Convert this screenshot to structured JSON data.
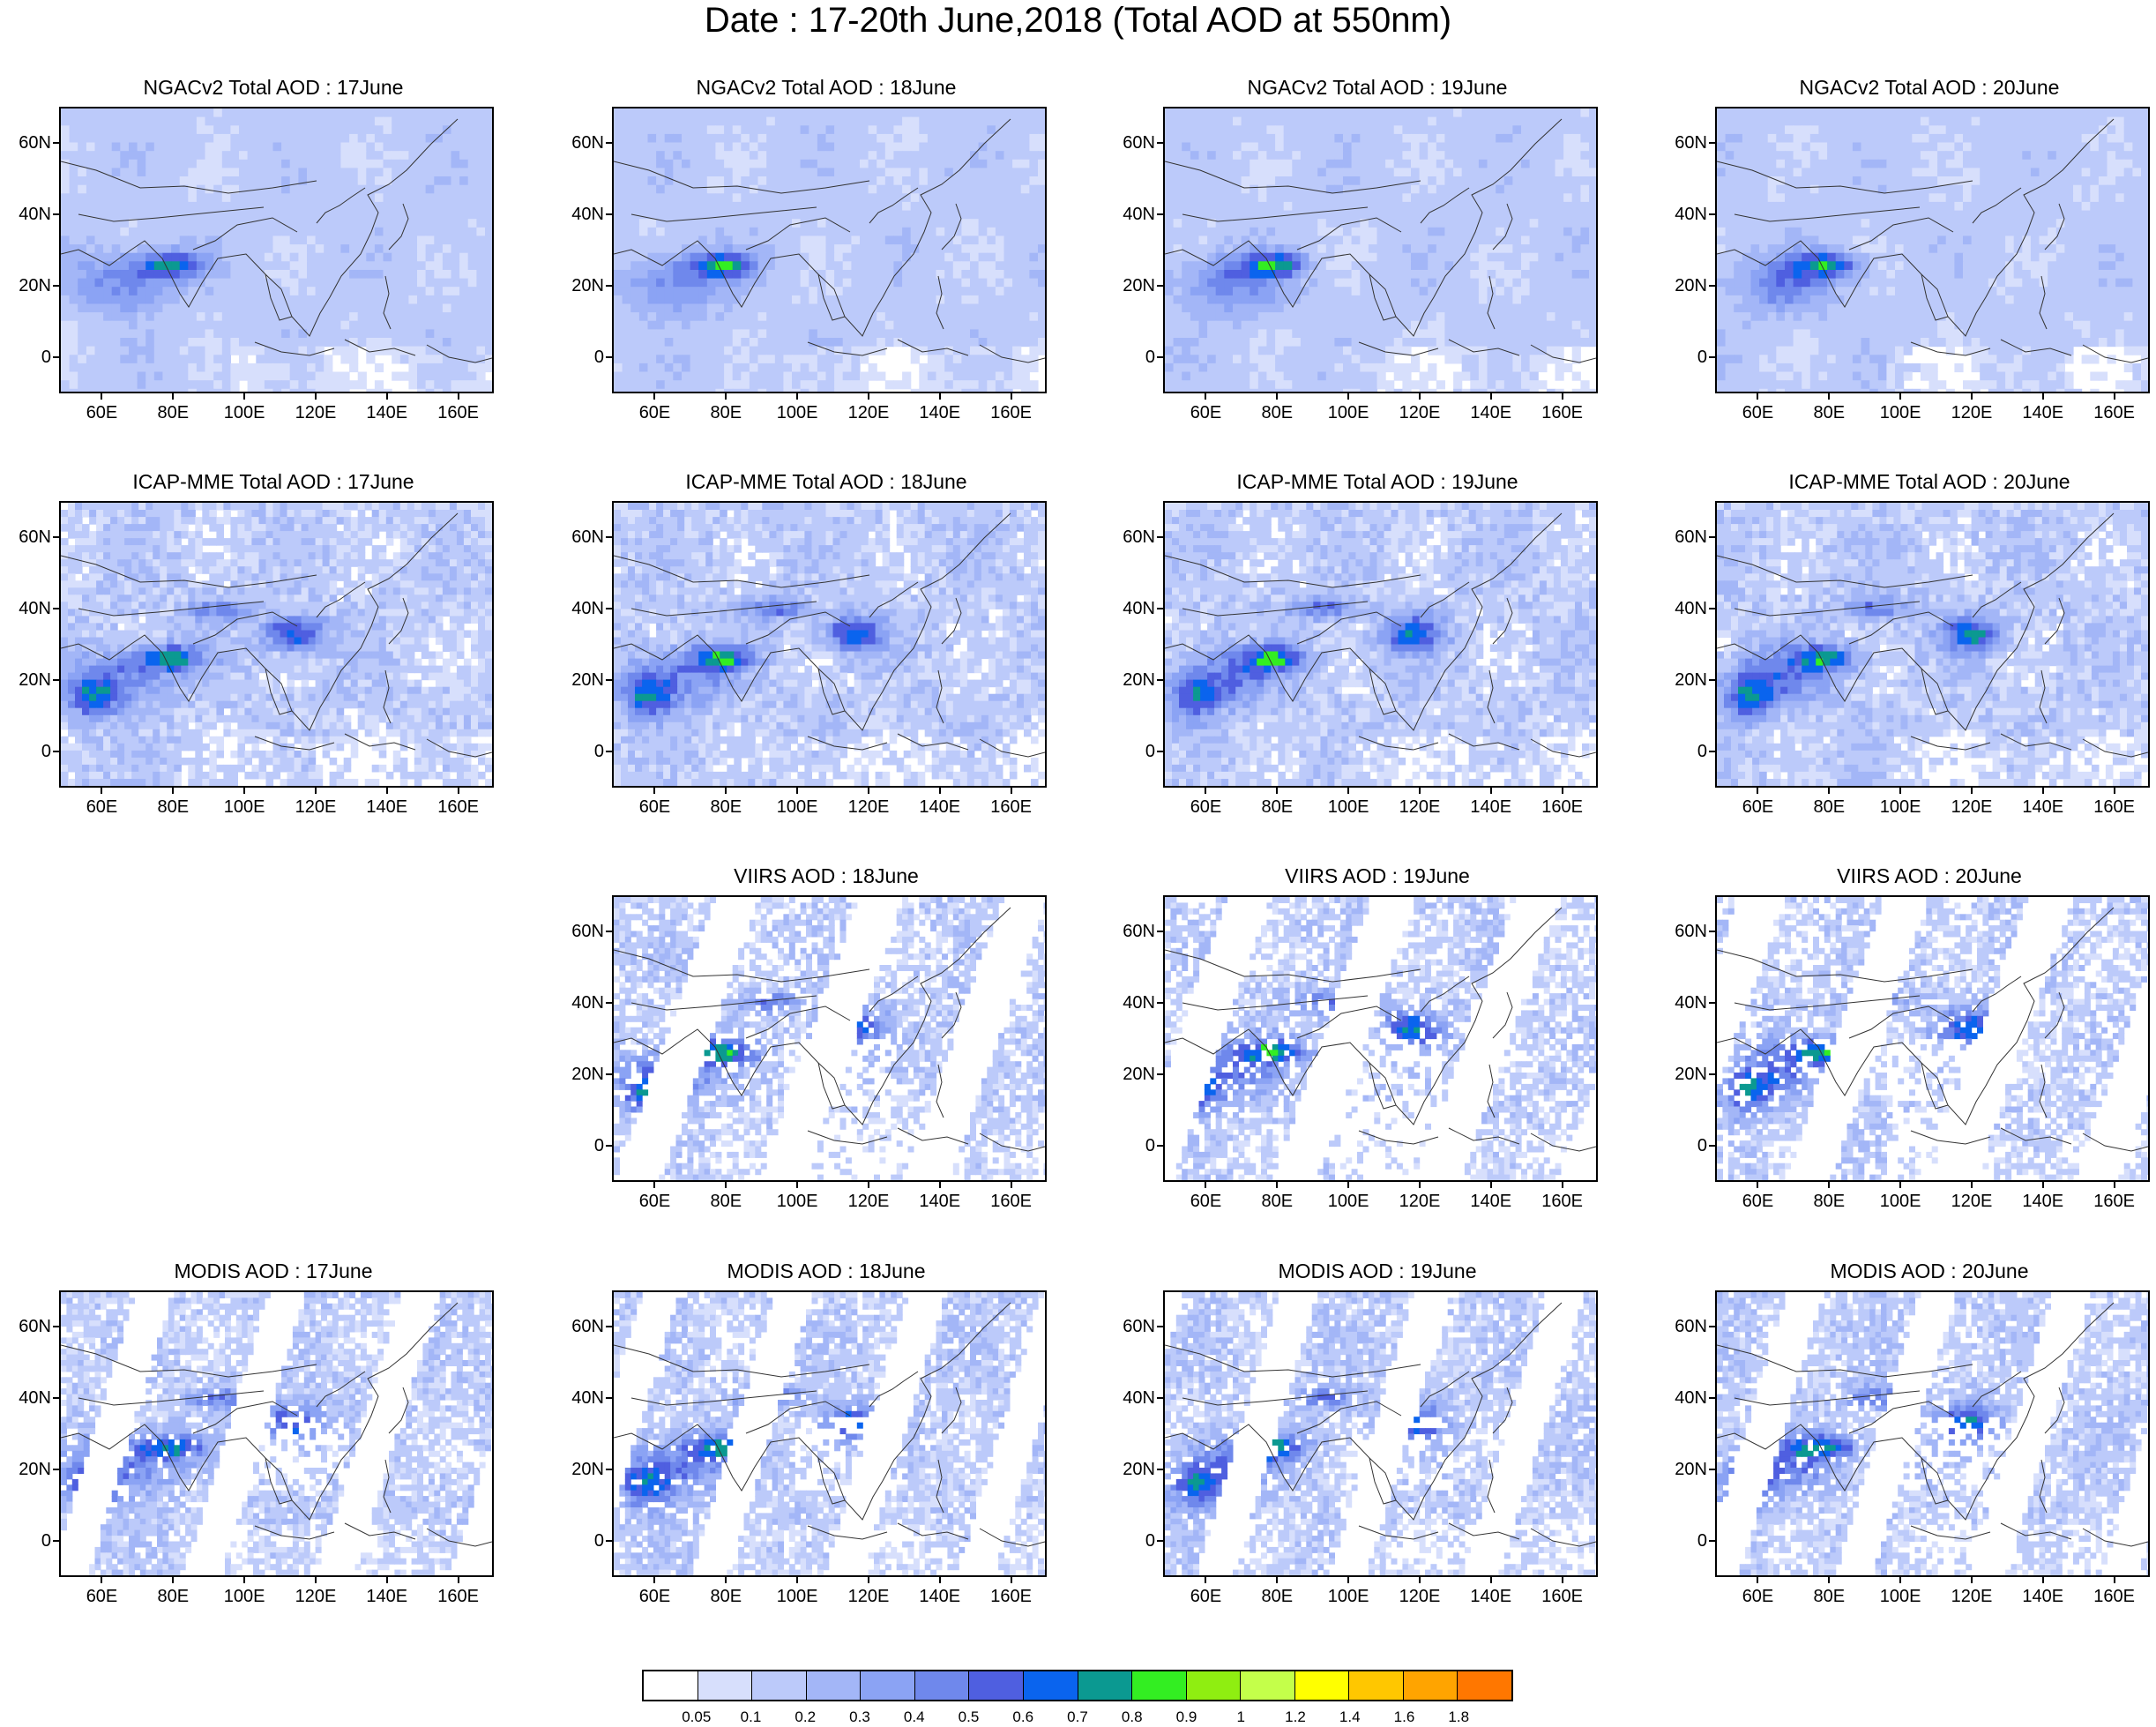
{
  "title": "Date : 17-20th June,2018 (Total AOD at 550nm)",
  "axes": {
    "lat_ticks": [
      "60N",
      "40N",
      "20N",
      "0"
    ],
    "lat_values": [
      60,
      40,
      20,
      0
    ],
    "lon_ticks": [
      "60E",
      "80E",
      "100E",
      "120E",
      "140E",
      "160E"
    ],
    "lon_values": [
      60,
      80,
      100,
      120,
      140,
      160
    ],
    "lon_range": [
      48,
      170
    ],
    "lat_range": [
      -10,
      70
    ]
  },
  "rows": [
    {
      "source": "NGACv2 Total AOD",
      "field_type": "model",
      "panels": [
        {
          "title": "NGACv2 Total AOD : 17June",
          "day": 17
        },
        {
          "title": "NGACv2 Total AOD : 18June",
          "day": 18
        },
        {
          "title": "NGACv2 Total AOD : 19June",
          "day": 19
        },
        {
          "title": "NGACv2 Total AOD : 20June",
          "day": 20
        }
      ]
    },
    {
      "source": "ICAP-MME Total AOD",
      "field_type": "ensemble",
      "panels": [
        {
          "title": "ICAP-MME Total AOD : 17June",
          "day": 17
        },
        {
          "title": "ICAP-MME Total AOD : 18June",
          "day": 18
        },
        {
          "title": "ICAP-MME Total AOD : 19June",
          "day": 19
        },
        {
          "title": "ICAP-MME Total AOD : 20June",
          "day": 20
        }
      ]
    },
    {
      "source": "VIIRS AOD",
      "field_type": "satellite-sparse",
      "panels": [
        null,
        {
          "title": "VIIRS AOD : 18June",
          "day": 18
        },
        {
          "title": "VIIRS AOD : 19June",
          "day": 19
        },
        {
          "title": "VIIRS AOD : 20June",
          "day": 20
        }
      ]
    },
    {
      "source": "MODIS AOD",
      "field_type": "satellite-swath",
      "panels": [
        {
          "title": "MODIS AOD : 17June",
          "day": 17
        },
        {
          "title": "MODIS AOD : 18June",
          "day": 18
        },
        {
          "title": "MODIS AOD : 19June",
          "day": 19
        },
        {
          "title": "MODIS AOD : 20June",
          "day": 20
        }
      ]
    }
  ],
  "colorbar": {
    "labels": [
      "0.05",
      "0.1",
      "0.2",
      "0.3",
      "0.4",
      "0.5",
      "0.6",
      "0.7",
      "0.8",
      "0.9",
      "1",
      "1.2",
      "1.4",
      "1.6",
      "1.8"
    ],
    "colors": [
      "#ffffff",
      "#d7dffc",
      "#bccafa",
      "#a3b6f7",
      "#8ba3f4",
      "#6f88ec",
      "#4f5fe0",
      "#0a64ee",
      "#0b9991",
      "#33ee22",
      "#8fee11",
      "#c4ff4a",
      "#ffff00",
      "#ffc700",
      "#ffa400",
      "#ff7700",
      "#ff1e1e"
    ]
  }
}
